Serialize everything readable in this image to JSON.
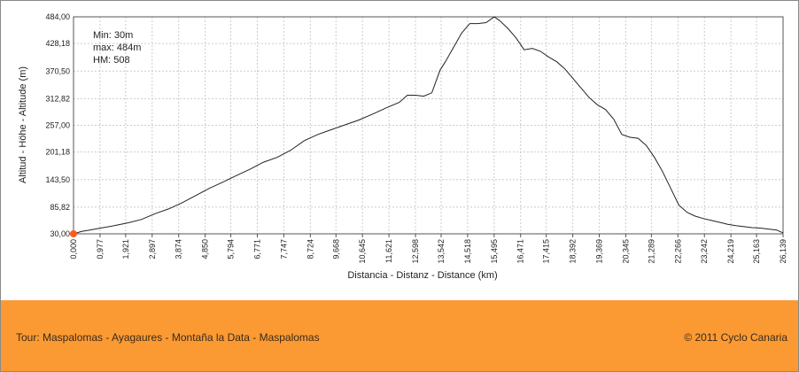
{
  "stats": {
    "min": "Min: 30m",
    "max": "max: 484m",
    "hm": "HM: 508"
  },
  "footer": {
    "tour": "Tour: Maspalomas - Ayagaures - Montaña la Data - Maspalomas",
    "copyright": "© 2011 Cyclo Canaria"
  },
  "colors": {
    "footer_bg": "#fb9a33",
    "line": "#222222",
    "start_marker": "#ff5a1e",
    "grid": "#cccccc"
  },
  "chart_data": {
    "type": "line",
    "xlabel": "Distancia - Distanz - Distance (km)",
    "ylabel": "Altitud - Höhe - Altitude (m)",
    "xlim": [
      0,
      26.139
    ],
    "ylim": [
      30,
      484
    ],
    "x_ticks": [
      "0,000",
      "0,977",
      "1,921",
      "2,897",
      "3,874",
      "4,850",
      "5,794",
      "6,771",
      "7,747",
      "8,724",
      "9,668",
      "10,645",
      "11,621",
      "12,598",
      "13,542",
      "14,518",
      "15,495",
      "16,471",
      "17,415",
      "18,392",
      "19,369",
      "20,345",
      "21,289",
      "22,266",
      "23,242",
      "24,219",
      "25,163",
      "26,139"
    ],
    "y_ticks": [
      "30,00",
      "85,82",
      "143,50",
      "201,18",
      "257,00",
      "312,82",
      "370,50",
      "428,18",
      "484,00"
    ],
    "grid": true,
    "series": [
      {
        "x": [
          0,
          0.3,
          0.6,
          1,
          1.5,
          2,
          2.5,
          3,
          3.5,
          4,
          4.5,
          5,
          5.5,
          6,
          6.5,
          7,
          7.5,
          8,
          8.5,
          9,
          9.5,
          10,
          10.5,
          11,
          11.5,
          12,
          12.3,
          12.6,
          12.9,
          13.2,
          13.5,
          13.7,
          14,
          14.3,
          14.6,
          14.9,
          15.2,
          15.5,
          15.7,
          16,
          16.3,
          16.6,
          16.9,
          17.2,
          17.5,
          17.8,
          18.1,
          18.4,
          18.7,
          19,
          19.3,
          19.6,
          19.9,
          20.2,
          20.5,
          20.8,
          21.1,
          21.4,
          21.7,
          22,
          22.3,
          22.6,
          22.9,
          23.2,
          23.5,
          23.8,
          24.1,
          24.4,
          24.7,
          25,
          25.3,
          25.6,
          25.9,
          26.139
        ],
        "y": [
          30,
          35,
          38,
          42,
          47,
          53,
          60,
          72,
          82,
          95,
          110,
          125,
          138,
          152,
          165,
          180,
          190,
          205,
          225,
          238,
          248,
          258,
          268,
          280,
          293,
          305,
          320,
          320,
          318,
          325,
          372,
          390,
          420,
          450,
          470,
          470,
          472,
          484,
          476,
          460,
          440,
          415,
          418,
          412,
          400,
          390,
          375,
          355,
          335,
          315,
          300,
          290,
          270,
          238,
          232,
          230,
          215,
          190,
          160,
          125,
          90,
          75,
          67,
          62,
          58,
          54,
          50,
          47,
          45,
          43,
          42,
          40,
          38,
          32
        ]
      }
    ]
  }
}
